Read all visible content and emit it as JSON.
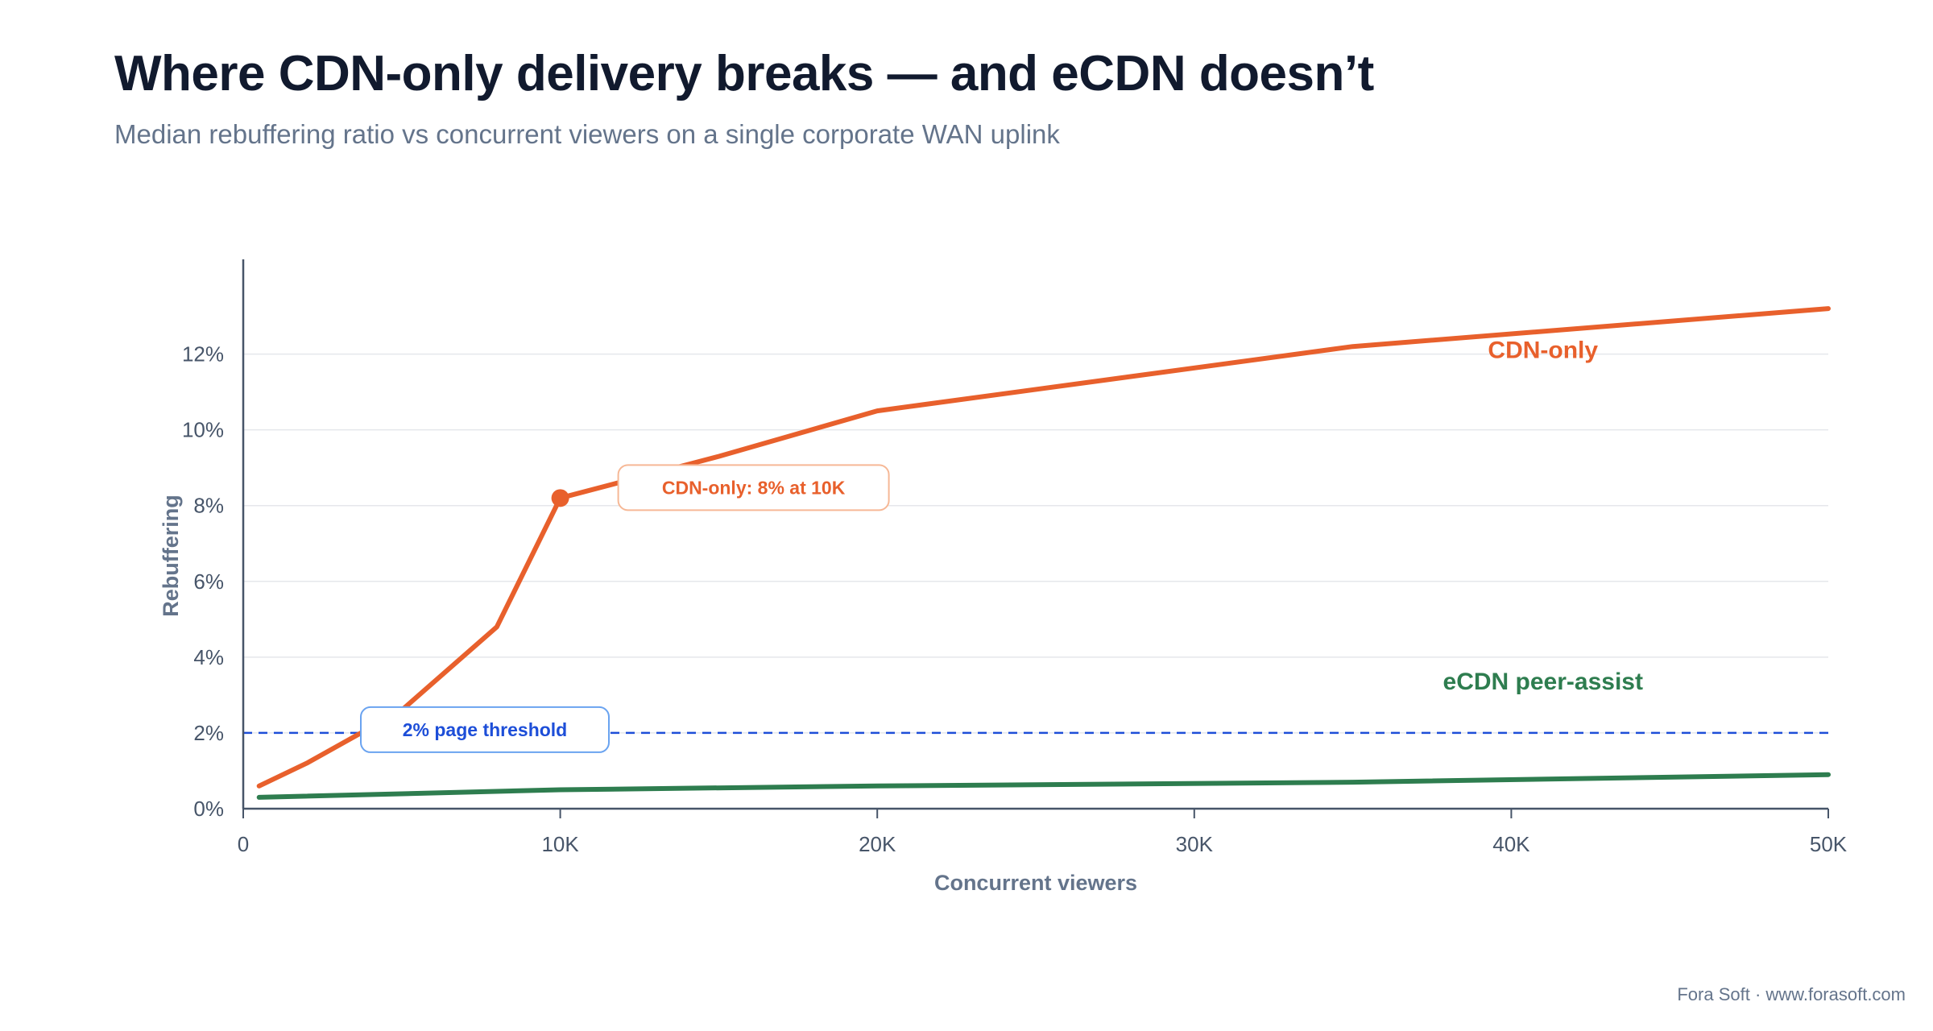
{
  "header": {
    "title": "Where CDN-only delivery breaks — and eCDN doesn’t",
    "subtitle": "Median rebuffering ratio vs concurrent viewers on a single corporate WAN uplink"
  },
  "footer": {
    "credit": "Fora Soft · www.forasoft.com"
  },
  "colors": {
    "cdn": "#e8602c",
    "ecdn": "#2e7d4f",
    "threshold": "#1d4ed8",
    "grid": "#e5e7eb",
    "axis": "#475569"
  },
  "chart_data": {
    "type": "line",
    "xlabel": "Concurrent viewers",
    "ylabel": "Rebuffering",
    "xlim": [
      0,
      50000
    ],
    "ylim": [
      0,
      14.5
    ],
    "x_ticks": [
      {
        "value": 0,
        "label": "0"
      },
      {
        "value": 10000,
        "label": "10K"
      },
      {
        "value": 20000,
        "label": "20K"
      },
      {
        "value": 30000,
        "label": "30K"
      },
      {
        "value": 40000,
        "label": "40K"
      },
      {
        "value": 50000,
        "label": "50K"
      }
    ],
    "y_ticks": [
      {
        "value": 0,
        "label": "0%"
      },
      {
        "value": 2,
        "label": "2%"
      },
      {
        "value": 4,
        "label": "4%"
      },
      {
        "value": 6,
        "label": "6%"
      },
      {
        "value": 8,
        "label": "8%"
      },
      {
        "value": 10,
        "label": "10%"
      },
      {
        "value": 12,
        "label": "12%"
      }
    ],
    "grid": true,
    "series": [
      {
        "name": "CDN-only",
        "color": "#e8602c",
        "points": [
          {
            "x": 500,
            "y": 0.6
          },
          {
            "x": 2000,
            "y": 1.2
          },
          {
            "x": 5000,
            "y": 2.6
          },
          {
            "x": 8000,
            "y": 4.8
          },
          {
            "x": 10000,
            "y": 8.2
          },
          {
            "x": 15000,
            "y": 9.3
          },
          {
            "x": 20000,
            "y": 10.5
          },
          {
            "x": 35000,
            "y": 12.2
          },
          {
            "x": 50000,
            "y": 13.2
          }
        ]
      },
      {
        "name": "eCDN peer-assist",
        "color": "#2e7d4f",
        "points": [
          {
            "x": 500,
            "y": 0.3
          },
          {
            "x": 10000,
            "y": 0.5
          },
          {
            "x": 20000,
            "y": 0.6
          },
          {
            "x": 35000,
            "y": 0.7
          },
          {
            "x": 50000,
            "y": 0.9
          }
        ]
      }
    ],
    "series_labels": [
      {
        "text": "CDN-only",
        "x": 41000,
        "y": 11.9,
        "color": "#e8602c"
      },
      {
        "text": "eCDN peer-assist",
        "x": 41000,
        "y": 3.15,
        "color": "#2e7d4f"
      }
    ],
    "threshold": {
      "y": 2,
      "label": "2% page threshold"
    },
    "annotation": {
      "x": 10000,
      "y": 8.2,
      "text": "CDN-only: 8% at 10K"
    }
  }
}
